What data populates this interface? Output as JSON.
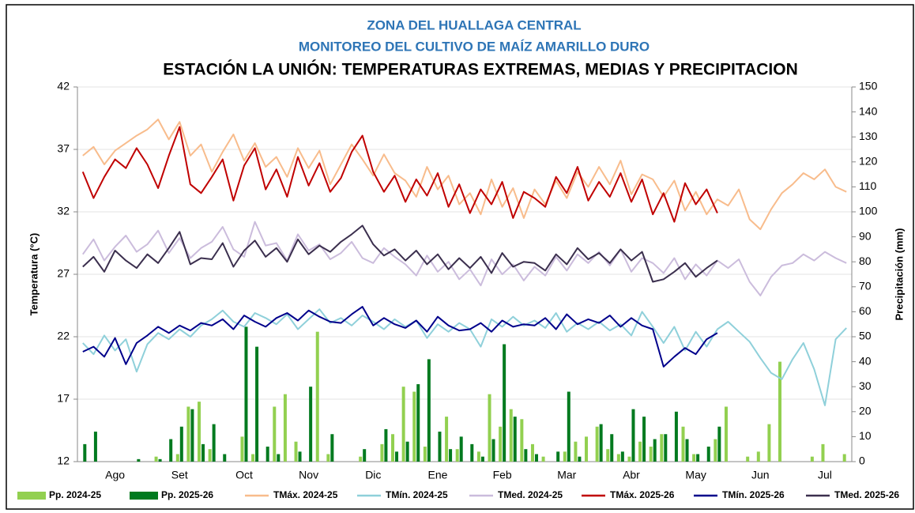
{
  "chart_data": {
    "type": "bar_line",
    "title": "ZONA DEL HUALLAGA CENTRAL",
    "subtitle": "MONITOREO  DEL CULTIVO DE MAÍZ AMARILLO DURO",
    "heading": "ESTACIÓN LA UNIÓN: TEMPERATURAS EXTREMAS, MEDIAS Y PRECIPITACION",
    "y_label": "Temperatura (°C)",
    "y2_label": "Precipitación  (mm)",
    "categories": [
      null,
      null,
      null,
      "Ago",
      null,
      null,
      null,
      null,
      null,
      "Set",
      null,
      null,
      null,
      null,
      null,
      "Oct",
      null,
      null,
      null,
      null,
      null,
      "Nov",
      null,
      null,
      null,
      null,
      null,
      "Dic",
      null,
      null,
      null,
      null,
      null,
      "Ene",
      null,
      null,
      null,
      null,
      null,
      "Feb",
      null,
      null,
      null,
      null,
      null,
      "Mar",
      null,
      null,
      null,
      null,
      null,
      "Abr",
      null,
      null,
      null,
      null,
      null,
      "May",
      null,
      null,
      null,
      null,
      null,
      "Jun",
      null,
      null,
      null,
      null,
      null,
      "Jul",
      null,
      null
    ],
    "ylim": [
      12,
      42
    ],
    "yticks": [
      12,
      17,
      22,
      27,
      32,
      37,
      42
    ],
    "y2lim": [
      0,
      150
    ],
    "y2ticks": [
      0,
      10,
      20,
      30,
      40,
      50,
      60,
      70,
      80,
      90,
      100,
      110,
      120,
      130,
      140,
      150
    ],
    "grid": true,
    "series": [
      {
        "name": "Pp. 2024-25",
        "type": "bar",
        "axis": "y2",
        "color": "#92d050",
        "values": [
          0,
          0,
          0,
          0,
          0,
          0,
          0,
          2,
          0,
          3,
          22,
          24,
          5,
          0,
          0,
          10,
          3,
          0,
          22,
          27,
          8,
          0,
          52,
          3,
          0,
          0,
          2,
          0,
          7,
          11,
          30,
          28,
          6,
          0,
          18,
          5,
          0,
          4,
          27,
          14,
          21,
          17,
          7,
          2,
          0,
          4,
          8,
          10,
          14,
          5,
          3,
          2,
          8,
          6,
          11,
          0,
          14,
          3,
          0,
          9,
          22,
          0,
          2,
          4,
          15,
          40,
          0,
          0,
          2,
          7,
          0,
          3
        ]
      },
      {
        "name": "Pp. 2025-26",
        "type": "bar",
        "axis": "y2",
        "color": "#007a1f",
        "values": [
          7,
          12,
          0,
          0,
          0,
          1,
          0,
          1,
          9,
          14,
          21,
          7,
          15,
          3,
          0,
          54,
          46,
          6,
          3,
          0,
          4,
          30,
          0,
          11,
          0,
          0,
          5,
          0,
          13,
          4,
          8,
          31,
          41,
          12,
          5,
          10,
          7,
          2,
          9,
          47,
          18,
          5,
          3,
          0,
          4,
          28,
          2,
          0,
          15,
          11,
          4,
          21,
          18,
          9,
          11,
          20,
          9,
          3,
          6,
          14,
          null,
          null,
          null,
          null,
          null,
          null,
          null,
          null,
          null,
          null,
          null,
          null
        ]
      },
      {
        "name": "TMáx. 2024-25",
        "type": "line",
        "color": "#f8bc8c",
        "values": [
          36.5,
          37.2,
          35.8,
          36.9,
          37.5,
          38.1,
          38.6,
          39.4,
          37.8,
          39.2,
          36.5,
          37.4,
          35.2,
          36.8,
          38.2,
          36.1,
          37.5,
          35.6,
          36.4,
          34.8,
          37.1,
          35.5,
          36.9,
          34.2,
          35.8,
          37.4,
          36.2,
          34.9,
          36.6,
          35.1,
          34.5,
          33.2,
          35.6,
          33.8,
          34.9,
          32.6,
          33.5,
          31.8,
          34.6,
          32.4,
          33.9,
          31.5,
          33.8,
          32.6,
          34.5,
          33.1,
          35.2,
          34.0,
          35.6,
          34.2,
          36.1,
          33.4,
          35.0,
          34.6,
          33.2,
          34.5,
          32.1,
          33.6,
          31.8,
          33.0,
          32.5,
          33.8,
          31.4,
          30.6,
          32.2,
          33.5,
          34.2,
          35.1,
          34.6,
          35.4,
          34.0,
          33.6
        ]
      },
      {
        "name": "TMín. 2024-25",
        "type": "line",
        "color": "#8fd0da",
        "values": [
          21.5,
          20.6,
          22.1,
          20.9,
          21.8,
          19.2,
          21.4,
          22.3,
          21.8,
          22.6,
          22.0,
          22.9,
          23.4,
          24.1,
          23.2,
          22.8,
          23.9,
          23.5,
          23.0,
          23.8,
          22.6,
          23.4,
          24.2,
          23.1,
          23.5,
          22.9,
          23.7,
          23.2,
          22.6,
          23.4,
          22.8,
          23.3,
          21.9,
          23.0,
          22.4,
          23.1,
          22.6,
          21.2,
          23.4,
          22.8,
          23.6,
          22.9,
          23.3,
          22.7,
          23.9,
          22.4,
          23.1,
          22.6,
          23.2,
          22.5,
          23.0,
          22.1,
          24.0,
          22.8,
          21.5,
          22.8,
          20.9,
          22.4,
          21.2,
          22.6,
          23.2,
          22.4,
          21.6,
          20.3,
          19.1,
          18.6,
          20.2,
          21.5,
          19.4,
          16.5,
          21.8,
          22.7
        ]
      },
      {
        "name": "TMed. 2024-25",
        "type": "line",
        "color": "#cbbcdc",
        "values": [
          28.6,
          29.8,
          28.1,
          29.2,
          30.1,
          28.8,
          29.4,
          30.5,
          28.7,
          29.9,
          28.3,
          29.1,
          29.6,
          30.8,
          29.0,
          28.4,
          31.2,
          29.3,
          29.5,
          28.1,
          30.2,
          28.9,
          29.4,
          28.2,
          28.7,
          29.6,
          28.3,
          27.9,
          29.1,
          28.4,
          27.8,
          26.9,
          28.5,
          27.2,
          28.0,
          26.6,
          27.4,
          26.1,
          28.2,
          27.0,
          27.8,
          26.5,
          27.6,
          26.9,
          28.4,
          27.3,
          28.6,
          27.9,
          28.8,
          27.7,
          29.0,
          27.2,
          28.3,
          27.9,
          27.1,
          28.3,
          26.6,
          27.8,
          26.9,
          28.1,
          27.5,
          28.2,
          26.4,
          25.3,
          26.8,
          27.7,
          27.9,
          28.6,
          28.1,
          28.8,
          28.3,
          27.9
        ]
      },
      {
        "name": "TMáx. 2025-26",
        "type": "line",
        "color": "#c00000",
        "values": [
          35.2,
          33.1,
          34.8,
          36.2,
          35.5,
          37.1,
          35.8,
          33.9,
          36.5,
          38.8,
          34.2,
          33.5,
          34.8,
          36.2,
          32.9,
          35.7,
          37.1,
          33.8,
          35.4,
          33.2,
          36.4,
          34.1,
          35.9,
          33.6,
          34.7,
          36.8,
          38.1,
          35.2,
          33.6,
          34.9,
          32.8,
          34.6,
          33.3,
          35.1,
          32.4,
          34.2,
          31.9,
          33.8,
          32.6,
          34.4,
          31.5,
          33.6,
          33.1,
          32.4,
          34.8,
          33.5,
          35.6,
          32.9,
          34.4,
          33.2,
          35.1,
          32.8,
          34.6,
          31.8,
          33.5,
          31.2,
          34.3,
          32.6,
          33.8,
          31.9,
          null,
          null,
          null,
          null,
          null,
          null,
          null,
          null,
          null,
          null,
          null,
          null
        ]
      },
      {
        "name": "TMín. 2025-26",
        "type": "line",
        "color": "#00008b",
        "values": [
          20.8,
          21.2,
          20.4,
          21.9,
          19.8,
          21.5,
          22.1,
          22.8,
          22.3,
          22.9,
          22.5,
          23.1,
          22.9,
          23.4,
          22.6,
          23.7,
          23.2,
          22.8,
          23.5,
          23.9,
          23.3,
          24.1,
          23.6,
          23.2,
          23.1,
          23.8,
          24.4,
          22.9,
          23.5,
          23.0,
          22.7,
          23.3,
          22.4,
          23.6,
          22.9,
          22.5,
          22.6,
          23.1,
          22.4,
          23.3,
          22.8,
          23.0,
          22.9,
          23.5,
          22.6,
          23.8,
          23.0,
          23.4,
          23.1,
          23.7,
          22.8,
          23.5,
          22.9,
          22.6,
          19.6,
          20.4,
          21.1,
          20.6,
          21.8,
          22.3,
          null,
          null,
          null,
          null,
          null,
          null,
          null,
          null,
          null,
          null,
          null,
          null
        ]
      },
      {
        "name": "TMed. 2025-26",
        "type": "line",
        "color": "#3b2f4e",
        "values": [
          27.6,
          28.4,
          27.2,
          28.9,
          28.1,
          27.5,
          28.6,
          27.9,
          29.1,
          30.4,
          27.8,
          28.3,
          28.2,
          29.5,
          27.6,
          28.9,
          29.7,
          28.4,
          29.1,
          28.0,
          29.8,
          28.6,
          29.3,
          28.8,
          29.6,
          30.2,
          30.9,
          29.4,
          28.5,
          29.0,
          28.1,
          28.9,
          27.8,
          28.6,
          27.4,
          28.3,
          27.5,
          28.4,
          27.1,
          28.7,
          27.6,
          28.0,
          27.9,
          27.3,
          28.6,
          27.8,
          29.1,
          28.2,
          28.7,
          27.9,
          29.0,
          28.1,
          28.8,
          26.4,
          26.6,
          27.2,
          27.9,
          26.8,
          27.5,
          28.1,
          null,
          null,
          null,
          null,
          null,
          null,
          null,
          null,
          null,
          null,
          null,
          null
        ]
      }
    ]
  }
}
